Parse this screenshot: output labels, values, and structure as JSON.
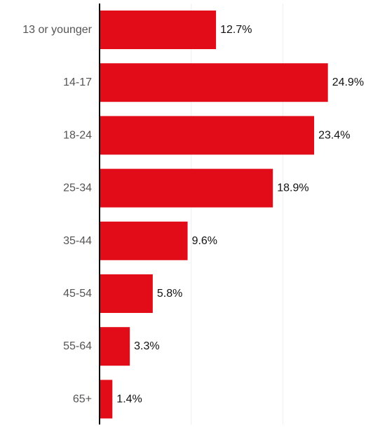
{
  "chart_data": {
    "type": "bar",
    "orientation": "horizontal",
    "categories": [
      "13 or younger",
      "14-17",
      "18-24",
      "25-34",
      "35-44",
      "45-54",
      "55-64",
      "65+"
    ],
    "values": [
      12.7,
      24.9,
      23.4,
      18.9,
      9.6,
      5.8,
      3.3,
      1.4
    ],
    "value_labels": [
      "12.7%",
      "24.9%",
      "23.4%",
      "18.9%",
      "9.6%",
      "5.8%",
      "3.3%",
      "1.4%"
    ],
    "title": "",
    "xlabel": "",
    "ylabel": "",
    "xlim": [
      0,
      30
    ],
    "grid": true,
    "legend": "none",
    "colors": {
      "bar": "#e20c18",
      "axis": "#000000",
      "grid": "#eeeeee",
      "category_text": "#555555",
      "value_text": "#111111"
    }
  }
}
